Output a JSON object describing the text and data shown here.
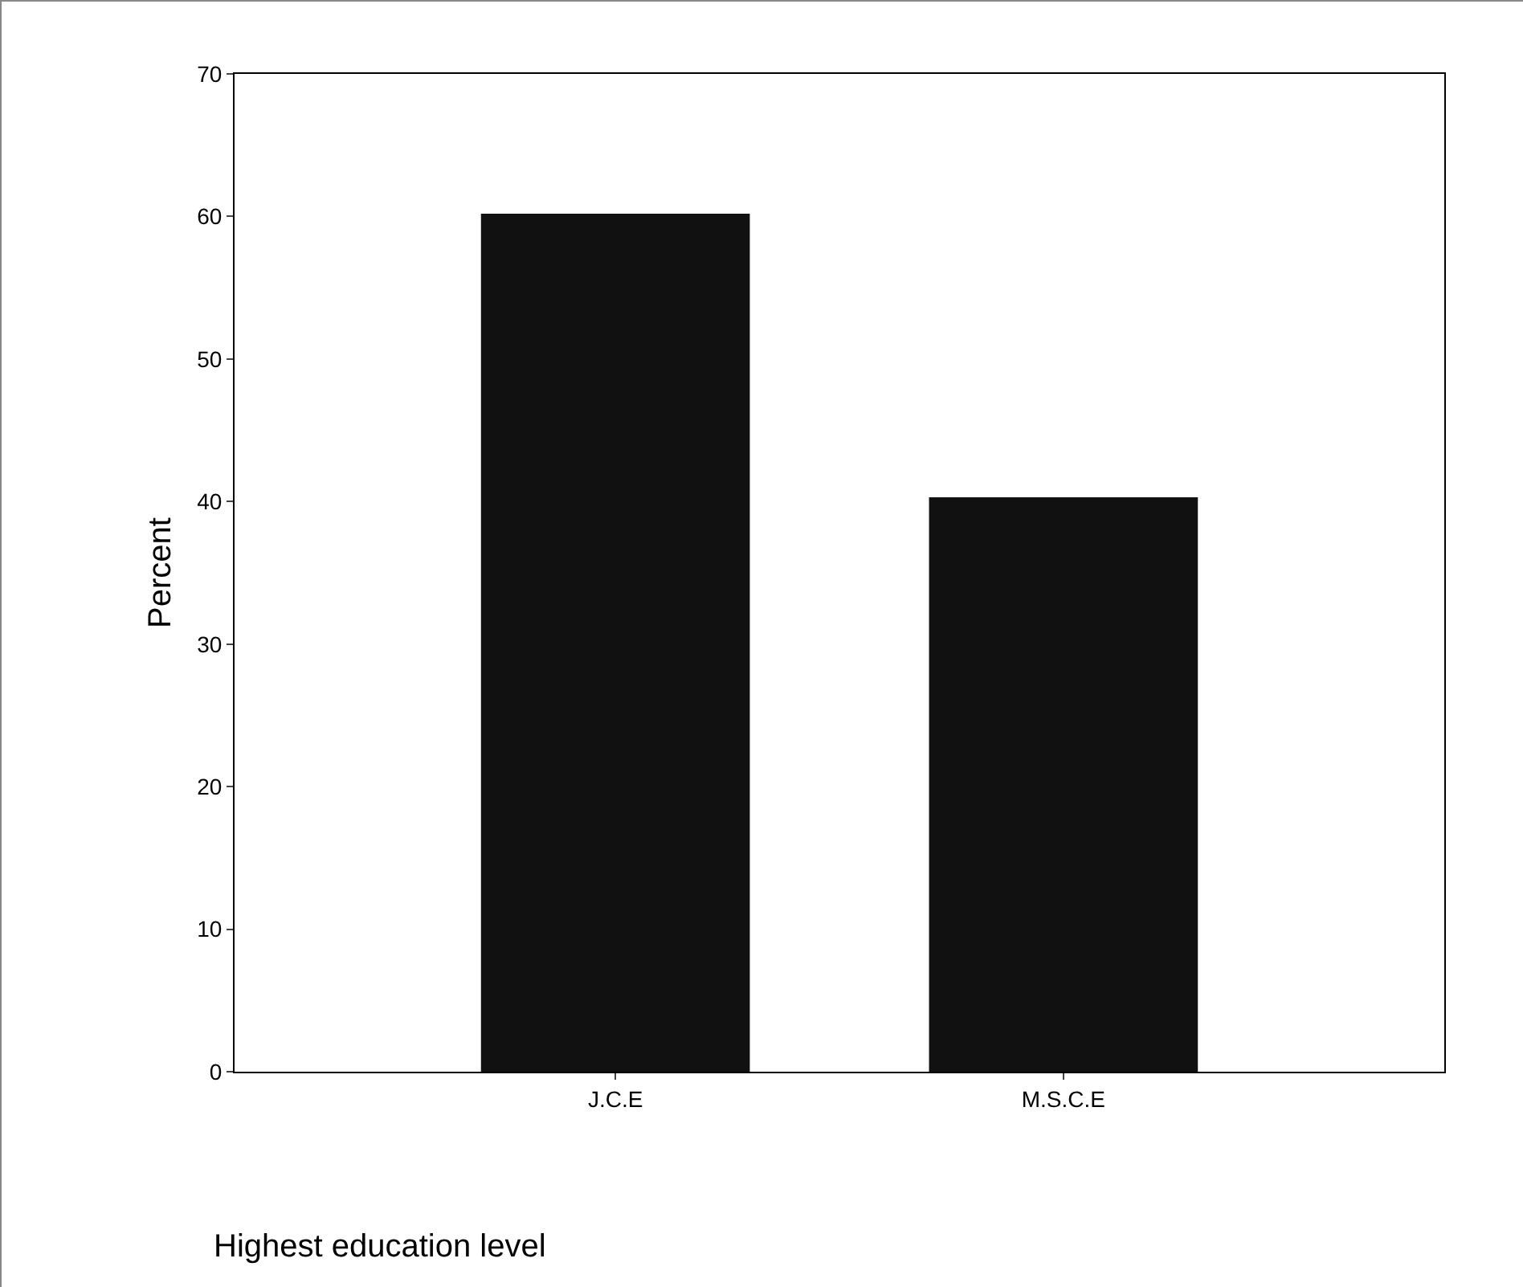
{
  "chart_data": {
    "type": "bar",
    "xlabel": "Highest education level",
    "ylabel": "Percent",
    "categories": [
      "J.C.E",
      "M.S.C.E"
    ],
    "values": [
      60.2,
      40.3
    ],
    "color": "#111111",
    "ylim": [
      0,
      70
    ],
    "yticks": [
      0,
      10,
      20,
      30,
      40,
      50,
      60,
      70
    ],
    "grid": false
  }
}
